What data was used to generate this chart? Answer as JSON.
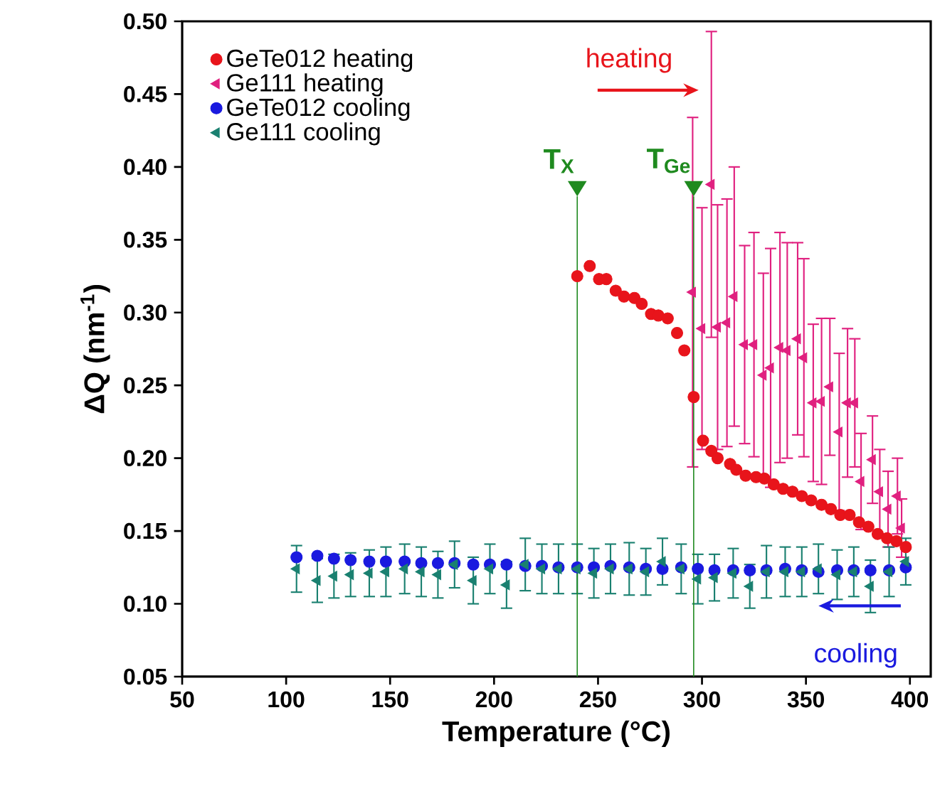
{
  "chart_data": {
    "type": "scatter",
    "xlabel": "Temperature (°C)",
    "ylabel": "ΔQ (nm$^{-1}$)",
    "xlim": [
      50,
      410
    ],
    "ylim": [
      0.05,
      0.5
    ],
    "xticks": [
      50,
      100,
      150,
      200,
      250,
      300,
      350,
      400
    ],
    "yticks": [
      {
        "value": 0.05,
        "label": "0.05"
      },
      {
        "value": 0.1,
        "label": "0.10"
      },
      {
        "value": 0.15,
        "label": "0.15"
      },
      {
        "value": 0.2,
        "label": "0.20"
      },
      {
        "value": 0.25,
        "label": "0.25"
      },
      {
        "value": 0.3,
        "label": "0.30"
      },
      {
        "value": 0.35,
        "label": "0.35"
      },
      {
        "value": 0.4,
        "label": "0.40"
      },
      {
        "value": 0.45,
        "label": "0.45"
      },
      {
        "value": 0.5,
        "label": "0.50"
      }
    ],
    "legend": "top left",
    "series": [
      {
        "name": "GeTe012 heating",
        "color": "#e8141b",
        "marker": "circle",
        "x": [
          240,
          246,
          250.5,
          254,
          258.5,
          262.5,
          267.5,
          271,
          275.5,
          279,
          283.5,
          288,
          291.5,
          296,
          300.5,
          304.5,
          307.5,
          313.5,
          316.5,
          321,
          326,
          330,
          334.5,
          339,
          343.5,
          348,
          352.5,
          357.5,
          362,
          366.5,
          371,
          375.5,
          380,
          384.5,
          389,
          393.5,
          398
        ],
        "values": [
          0.325,
          0.332,
          0.323,
          0.323,
          0.315,
          0.311,
          0.31,
          0.306,
          0.299,
          0.298,
          0.296,
          0.286,
          0.274,
          0.242,
          0.212,
          0.205,
          0.2,
          0.196,
          0.192,
          0.188,
          0.187,
          0.186,
          0.182,
          0.179,
          0.177,
          0.174,
          0.171,
          0.168,
          0.165,
          0.161,
          0.161,
          0.156,
          0.153,
          0.148,
          0.145,
          0.143,
          0.139
        ]
      },
      {
        "name": "Ge111 heating",
        "color": "#e0207f",
        "marker": "triangle",
        "x": [
          295.5,
          300,
          304.5,
          307.5,
          312,
          315.5,
          320.5,
          325,
          329.5,
          333,
          337.5,
          341,
          346,
          349,
          353.5,
          357.5,
          361.5,
          366,
          370,
          373.5,
          376.5,
          382,
          385.5,
          389.5,
          394,
          396
        ],
        "values": [
          0.314,
          0.289,
          0.388,
          0.29,
          0.293,
          0.311,
          0.278,
          0.278,
          0.257,
          0.262,
          0.276,
          0.274,
          0.282,
          0.269,
          0.238,
          0.239,
          0.249,
          0.218,
          0.238,
          0.238,
          0.184,
          0.199,
          0.177,
          0.165,
          0.174,
          0.152
        ],
        "errors": [
          0.12,
          0.083,
          0.105,
          0.084,
          0.085,
          0.089,
          0.068,
          0.077,
          0.07,
          0.082,
          0.079,
          0.074,
          0.066,
          0.068,
          0.054,
          0.057,
          0.047,
          0.054,
          0.051,
          0.044,
          0.033,
          0.03,
          0.029,
          0.026,
          0.026,
          0.02
        ]
      },
      {
        "name": "GeTe012 cooling",
        "color": "#1a1adf",
        "marker": "circle",
        "x": [
          105,
          115,
          123,
          131,
          140,
          148,
          157,
          165,
          173,
          181,
          190,
          198,
          206,
          215,
          223,
          231,
          240,
          248,
          256,
          265,
          273,
          281,
          290,
          298,
          306,
          315,
          323,
          331,
          340,
          348,
          356,
          365,
          373,
          381,
          390,
          398
        ],
        "values": [
          0.132,
          0.133,
          0.131,
          0.13,
          0.129,
          0.129,
          0.129,
          0.128,
          0.128,
          0.128,
          0.127,
          0.127,
          0.127,
          0.126,
          0.126,
          0.125,
          0.125,
          0.125,
          0.126,
          0.125,
          0.124,
          0.124,
          0.125,
          0.124,
          0.123,
          0.123,
          0.123,
          0.123,
          0.124,
          0.123,
          0.122,
          0.123,
          0.123,
          0.123,
          0.123,
          0.125
        ]
      },
      {
        "name": "Ge111 cooling",
        "color": "#1a8070",
        "marker": "triangle",
        "x": [
          105,
          115,
          123,
          131,
          140,
          148,
          157,
          165,
          173,
          181,
          190,
          198,
          206,
          215,
          223,
          231,
          240,
          248,
          256,
          265,
          273,
          281,
          290,
          298,
          306,
          315,
          323,
          331,
          340,
          348,
          356,
          365,
          373,
          381,
          390,
          398
        ],
        "values": [
          0.124,
          0.116,
          0.119,
          0.12,
          0.121,
          0.122,
          0.124,
          0.122,
          0.12,
          0.127,
          0.116,
          0.124,
          0.113,
          0.127,
          0.124,
          0.124,
          0.124,
          0.121,
          0.124,
          0.124,
          0.122,
          0.129,
          0.124,
          0.117,
          0.118,
          0.121,
          0.112,
          0.122,
          0.122,
          0.122,
          0.124,
          0.12,
          0.122,
          0.112,
          0.122,
          0.129
        ],
        "errors": [
          0.016,
          0.015,
          0.015,
          0.015,
          0.016,
          0.017,
          0.017,
          0.017,
          0.016,
          0.016,
          0.016,
          0.017,
          0.016,
          0.018,
          0.017,
          0.017,
          0.017,
          0.017,
          0.017,
          0.018,
          0.016,
          0.016,
          0.017,
          0.017,
          0.016,
          0.017,
          0.015,
          0.018,
          0.017,
          0.017,
          0.017,
          0.017,
          0.017,
          0.018,
          0.017,
          0.016
        ]
      }
    ],
    "ref_lines": [
      {
        "axis": "x",
        "value": 240,
        "label": "T$_{X}$",
        "color": "#1f8a1f"
      },
      {
        "axis": "x",
        "value": 296,
        "label": "T$_{Ge}$",
        "color": "#1f8a1f"
      }
    ],
    "annotations": [
      "heating",
      "cooling"
    ]
  }
}
